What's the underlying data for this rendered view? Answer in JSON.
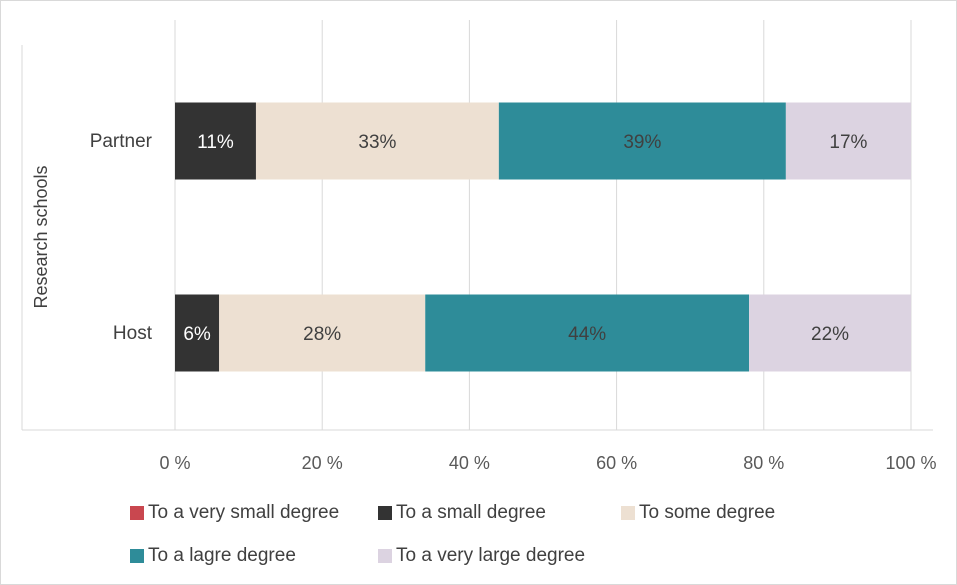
{
  "chart_data": {
    "type": "bar",
    "orientation": "horizontal",
    "stacked": "percent",
    "categories": [
      "Partner",
      "Host"
    ],
    "ylabel": "Research schools",
    "xlim": [
      0,
      100
    ],
    "x_ticks": [
      "0 %",
      "20 %",
      "40 %",
      "60 %",
      "80 %",
      "100 %"
    ],
    "grid": true,
    "legend_position": "bottom",
    "series": [
      {
        "name": "To a very small degree",
        "color": "#c9474f",
        "values": [
          0,
          0
        ],
        "labels": [
          "",
          ""
        ]
      },
      {
        "name": "To a small degree",
        "color": "#333333",
        "values": [
          11,
          6
        ],
        "labels": [
          "11%",
          "6%"
        ]
      },
      {
        "name": "To some degree",
        "color": "#ede0d2",
        "values": [
          33,
          28
        ],
        "labels": [
          "33%",
          "28%"
        ]
      },
      {
        "name": "To a lagre degree",
        "color": "#2e8c99",
        "values": [
          39,
          44
        ],
        "labels": [
          "39%",
          "44%"
        ]
      },
      {
        "name": "To a very large degree",
        "color": "#dcd3e1",
        "values": [
          17,
          22
        ],
        "labels": [
          "17%",
          "22%"
        ]
      }
    ]
  }
}
